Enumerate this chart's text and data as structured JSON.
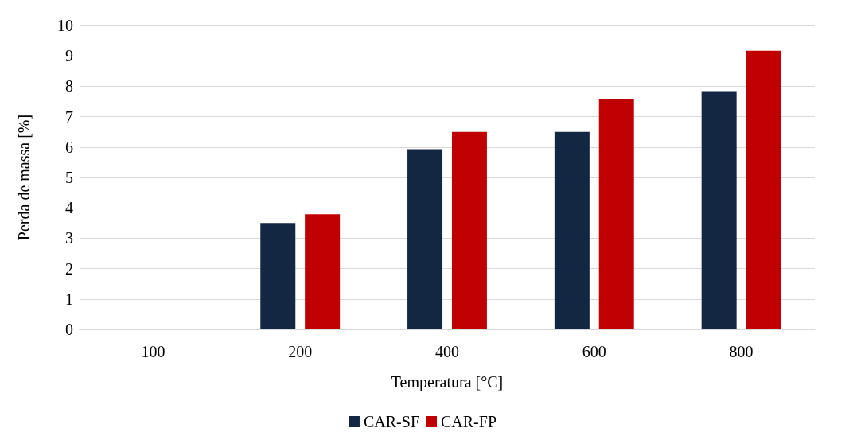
{
  "chart_data": {
    "type": "bar",
    "xlabel": "Temperatura [°C]",
    "ylabel": "Perda de massa [%]",
    "categories": [
      "100",
      "200",
      "400",
      "600",
      "800"
    ],
    "series": [
      {
        "name": "CAR-SF",
        "color": "#132742",
        "values": [
          null,
          3.5,
          5.93,
          6.5,
          7.84
        ]
      },
      {
        "name": "CAR-FP",
        "color": "#c00000",
        "values": [
          null,
          3.79,
          6.5,
          7.57,
          9.17
        ]
      }
    ],
    "ylim": [
      0,
      10
    ],
    "yticks": [
      0,
      1,
      2,
      3,
      4,
      5,
      6,
      7,
      8,
      9,
      10
    ],
    "grid": "y",
    "legend": "bottom"
  }
}
